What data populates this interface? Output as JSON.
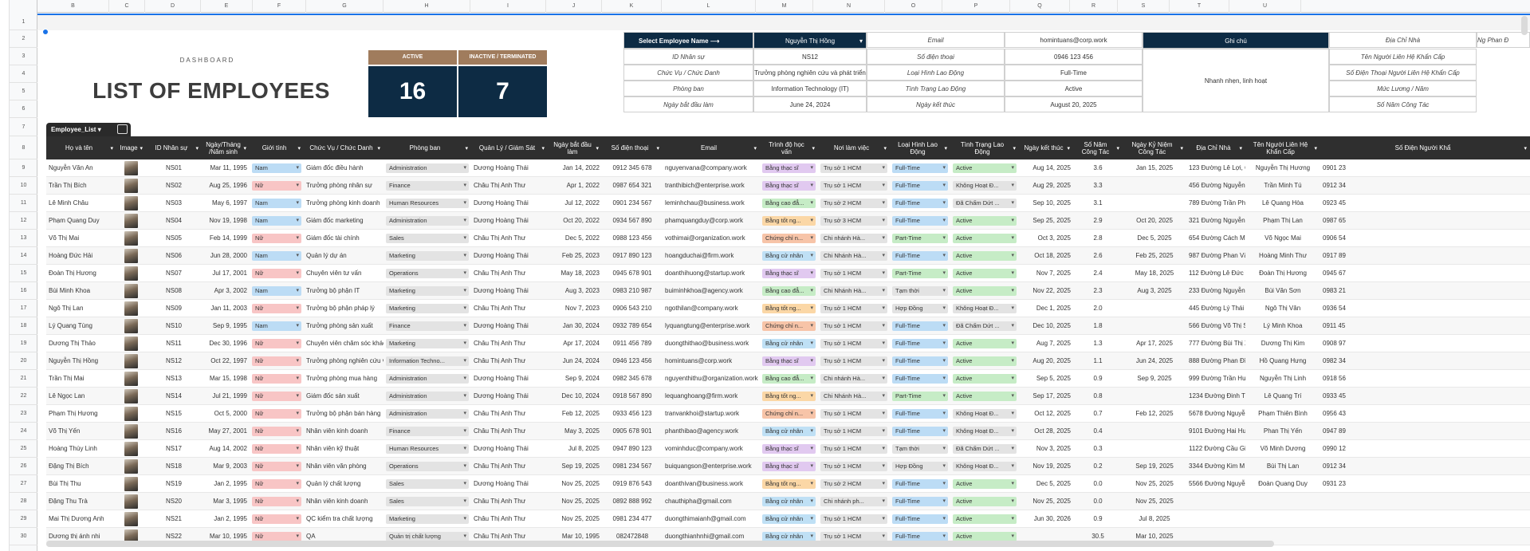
{
  "columns": [
    "B",
    "C",
    "D",
    "E",
    "F",
    "G",
    "H",
    "I",
    "J",
    "K",
    "L",
    "M",
    "N",
    "O",
    "P",
    "Q",
    "R",
    "S",
    "T",
    "U"
  ],
  "row_numbers": [
    "1",
    "2",
    "3",
    "4",
    "5",
    "6",
    "7",
    "8",
    "9",
    "10",
    "11",
    "12",
    "13",
    "14",
    "15",
    "16",
    "17",
    "18",
    "19",
    "20",
    "21",
    "22",
    "23",
    "24",
    "25",
    "26",
    "27",
    "28",
    "29",
    "30"
  ],
  "dashboard": {
    "label": "DASHBOARD",
    "title": "LIST OF EMPLOYEES",
    "active_label": "ACTIVE",
    "inactive_label": "INACTIVE / TERMINATED",
    "active_count": "16",
    "inactive_count": "7"
  },
  "info": {
    "select_label": "Select Employee Name",
    "selected_name": "Nguyễn Thị Hồng",
    "id_label": "ID Nhân sự",
    "id_value": "NS12",
    "position_label": "Chức Vụ / Chức Danh",
    "position_value": "Trưởng phòng nghiên cứu và phát triển",
    "dept_label": "Phòng ban",
    "dept_value": "Information Technology (IT)",
    "start_label": "Ngày bắt đầu làm",
    "start_value": "June 24, 2024",
    "email_label": "Email",
    "email_value": "homintuans@corp.work",
    "phone_label": "Số điện thoại",
    "phone_value": "0946 123 456",
    "contract_label": "Loại Hình Lao Động",
    "contract_value": "Full-Time",
    "status_label": "Tình Trạng Lao Động",
    "status_value": "Active",
    "end_label": "Ngày kết thúc",
    "end_value": "August 20, 2025",
    "note_label": "Ghi chú",
    "note_value": "Nhanh nhẹn, linh hoạt",
    "address_label": "Địa Chỉ Nhà",
    "contact_name_label": "Tên Người Liên Hệ Khẩn Cấp",
    "contact_phone_label": "Số Điện Thoại Người Liên Hệ Khẩn Cấp",
    "salary_label": "Mức Lương / Năm",
    "years_label": "Số Năm Công Tác",
    "extra_label": "Ng Phan Đ"
  },
  "table_tab": "Employee_List",
  "headers": {
    "name": "Họ và tên",
    "image": "Image",
    "id": "ID Nhân sự",
    "dob": "Ngày/Tháng /Năm sinh",
    "gender": "Giới tính",
    "position": "Chức Vụ / Chức Danh",
    "dept": "Phòng ban",
    "manager": "Quản Lý / Giám Sát",
    "start": "Ngày bắt đầu làm",
    "phone": "Số điện thoại",
    "email": "Email",
    "edu": "Trình độ học vấn",
    "office": "Nơi làm việc",
    "contract": "Loại Hình Lao Động",
    "status": "Tình Trạng Lao Động",
    "end": "Ngày kết thúc",
    "years": "Số Năm Công Tác",
    "anniv": "Ngày Kỷ Niệm Công Tác",
    "address": "Địa Chỉ Nhà",
    "contact": "Tên Người Liên Hệ Khẩn Cấp",
    "contact_phone": "Số Điện Người Khẩ"
  },
  "rows": [
    {
      "name": "Nguyễn Văn An",
      "id": "NS01",
      "dob": "Mar 11, 1995",
      "gender": "Nam",
      "position": "Giám đốc điều hành",
      "dept": "Administration",
      "manager": "Dương Hoàng Thái",
      "start": "Jan 14, 2022",
      "phone": "0912 345 678",
      "email": "nguyenvana@company.work",
      "edu": "Bằng thạc sĩ",
      "office": "Trụ sở 1 HCM",
      "contract": "Full-Time",
      "status": "Active",
      "end": "Aug 14, 2025",
      "years": "3.6",
      "anniv": "Jan 15, 2025",
      "address": "123 Đường Lê Lợi, Q",
      "contact": "Nguyễn Thị Hương",
      "cphone": "0901 23"
    },
    {
      "name": "Trần Thị Bích",
      "id": "NS02",
      "dob": "Aug 25, 1996",
      "gender": "Nữ",
      "position": "Trưởng phòng nhân sự",
      "dept": "Finance",
      "manager": "Châu Thị Anh Thư",
      "start": "Apr 1, 2022",
      "phone": "0987 654 321",
      "email": "tranthibich@enterprise.work",
      "edu": "Bằng thạc sĩ",
      "office": "Trụ sở 1 HCM",
      "contract": "Full-Time",
      "status": "Không Hoạt Đ...",
      "end": "Aug 29, 2025",
      "years": "3.3",
      "anniv": "",
      "address": "456 Đường Nguyễn",
      "contact": "Trần Minh Tú",
      "cphone": "0912 34"
    },
    {
      "name": "Lê Minh Châu",
      "id": "NS03",
      "dob": "May 6, 1997",
      "gender": "Nam",
      "position": "Trưởng phòng kinh doanh",
      "dept": "Human Resources",
      "manager": "Dương Hoàng Thái",
      "start": "Jul 12, 2022",
      "phone": "0901 234 567",
      "email": "leminhchau@business.work",
      "edu": "Bằng cao đẳ...",
      "office": "Trụ sở 2 HCM",
      "contract": "Full-Time",
      "status": "Đã Chấm Dứt ...",
      "end": "Sep 10, 2025",
      "years": "3.1",
      "anniv": "",
      "address": "789 Đường Trần Ph",
      "contact": "Lê Quang Hòa",
      "cphone": "0923 45"
    },
    {
      "name": "Phạm Quang Duy",
      "id": "NS04",
      "dob": "Nov 19, 1998",
      "gender": "Nam",
      "position": "Giám đốc marketing",
      "dept": "Administration",
      "manager": "Dương Hoàng Thái",
      "start": "Oct 20, 2022",
      "phone": "0934 567 890",
      "email": "phamquangduy@corp.work",
      "edu": "Bằng tốt ng...",
      "office": "Trụ sở 3 HCM",
      "contract": "Full-Time",
      "status": "Active",
      "end": "Sep 25, 2025",
      "years": "2.9",
      "anniv": "Oct 20, 2025",
      "address": "321 Đường Nguyễn",
      "contact": "Phạm Thị Lan",
      "cphone": "0987 65"
    },
    {
      "name": "Võ Thị Mai",
      "id": "NS05",
      "dob": "Feb 14, 1999",
      "gender": "Nữ",
      "position": "Giám đốc tài chính",
      "dept": "Sales",
      "manager": "Châu Thị Anh Thư",
      "start": "Dec 5, 2022",
      "phone": "0988 123 456",
      "email": "vothimai@organization.work",
      "edu": "Chứng chỉ n...",
      "office": "Chi nhánh Hà...",
      "contract": "Part-Time",
      "status": "Active",
      "end": "Oct 3, 2025",
      "years": "2.8",
      "anniv": "Dec 5, 2025",
      "address": "654 Đường Cách M",
      "contact": "Võ Ngọc Mai",
      "cphone": "0906 54"
    },
    {
      "name": "Hoàng Đức Hải",
      "id": "NS06",
      "dob": "Jun 28, 2000",
      "gender": "Nam",
      "position": "Quản lý dự án",
      "dept": "Marketing",
      "manager": "Dương Hoàng Thái",
      "start": "Feb 25, 2023",
      "phone": "0917 890 123",
      "email": "hoangduchai@firm.work",
      "edu": "Bằng cử nhân",
      "office": "Chi Nhánh Hà...",
      "contract": "Full-Time",
      "status": "Active",
      "end": "Oct 18, 2025",
      "years": "2.6",
      "anniv": "Feb 25, 2025",
      "address": "987 Đường Phan Vă",
      "contact": "Hoàng Minh Thư",
      "cphone": "0917 89"
    },
    {
      "name": "Đoàn Thị Hương",
      "id": "NS07",
      "dob": "Jul 17, 2001",
      "gender": "Nữ",
      "position": "Chuyên viên tư vấn",
      "dept": "Operations",
      "manager": "Châu Thị Anh Thư",
      "start": "May 18, 2023",
      "phone": "0945 678 901",
      "email": "doanthihuong@startup.work",
      "edu": "Bằng thạc sĩ",
      "office": "Trụ sở 1 HCM",
      "contract": "Part-Time",
      "status": "Active",
      "end": "Nov 7, 2025",
      "years": "2.4",
      "anniv": "May 18, 2025",
      "address": "112 Đường Lê Đức T",
      "contact": "Đoàn Thị Hương",
      "cphone": "0945 67"
    },
    {
      "name": "Bùi Minh Khoa",
      "id": "NS08",
      "dob": "Apr 3, 2002",
      "gender": "Nam",
      "position": "Trưởng bộ phận IT",
      "dept": "Marketing",
      "manager": "Dương Hoàng Thái",
      "start": "Aug 3, 2023",
      "phone": "0983 210 987",
      "email": "buiminhkhoa@agency.work",
      "edu": "Bằng cao đẳ...",
      "office": "Chi Nhánh Hà...",
      "contract": "Tạm thời",
      "status": "Active",
      "end": "Nov 22, 2025",
      "years": "2.3",
      "anniv": "Aug 3, 2025",
      "address": "233 Đường Nguyễn",
      "contact": "Bùi Văn Sơn",
      "cphone": "0983 21"
    },
    {
      "name": "Ngô Thị Lan",
      "id": "NS09",
      "dob": "Jan 11, 2003",
      "gender": "Nữ",
      "position": "Trưởng bộ phận pháp lý",
      "dept": "Marketing",
      "manager": "Châu Thị Anh Thư",
      "start": "Nov 7, 2023",
      "phone": "0906 543 210",
      "email": "ngothilan@company.work",
      "edu": "Bằng tốt ng...",
      "office": "Trụ sở 1 HCM",
      "contract": "Hợp Đồng",
      "status": "Không Hoạt Đ...",
      "end": "Dec 1, 2025",
      "years": "2.0",
      "anniv": "",
      "address": "445 Đường Lý Thái",
      "contact": "Ngô Thị Vân",
      "cphone": "0936 54"
    },
    {
      "name": "Lý Quang Tùng",
      "id": "NS10",
      "dob": "Sep 9, 1995",
      "gender": "Nam",
      "position": "Trưởng phòng sản xuất",
      "dept": "Finance",
      "manager": "Dương Hoàng Thái",
      "start": "Jan 30, 2024",
      "phone": "0932 789 654",
      "email": "lyquangtung@enterprise.work",
      "edu": "Chứng chỉ n...",
      "office": "Trụ sở 1 HCM",
      "contract": "Full-Time",
      "status": "Đã Chấm Dứt ...",
      "end": "Dec 10, 2025",
      "years": "1.8",
      "anniv": "",
      "address": "566 Đường Võ Thị S",
      "contact": "Lý Minh Khoa",
      "cphone": "0911 45"
    },
    {
      "name": "Dương Thị Thảo",
      "id": "NS11",
      "dob": "Dec 30, 1996",
      "gender": "Nữ",
      "position": "Chuyên viên chăm sóc khác",
      "dept": "Marketing",
      "manager": "Châu Thị Anh Thư",
      "start": "Apr 17, 2024",
      "phone": "0911 456 789",
      "email": "duongthithao@business.work",
      "edu": "Bằng cử nhân",
      "office": "Trụ sở 1 HCM",
      "contract": "Full-Time",
      "status": "Active",
      "end": "Aug 7, 2025",
      "years": "1.3",
      "anniv": "Apr 17, 2025",
      "address": "777 Đường Bùi Thị X",
      "contact": "Dương Thị Kim",
      "cphone": "0908 97"
    },
    {
      "name": "Nguyễn Thị Hồng",
      "id": "NS12",
      "dob": "Oct 22, 1997",
      "gender": "Nữ",
      "position": "Trưởng phòng nghiên cứu và",
      "dept": "Information Techno...",
      "manager": "Châu Thị Anh Thư",
      "start": "Jun 24, 2024",
      "phone": "0946 123 456",
      "email": "homintuans@corp.work",
      "edu": "Bằng thạc sĩ",
      "office": "Trụ sở 1 HCM",
      "contract": "Full-Time",
      "status": "Active",
      "end": "Aug 20, 2025",
      "years": "1.1",
      "anniv": "Jun 24, 2025",
      "address": "888 Đường Phan Đì",
      "contact": "Hồ Quang Hưng",
      "cphone": "0982 34"
    },
    {
      "name": "Trần Thị Mai",
      "id": "NS13",
      "dob": "Mar 15, 1998",
      "gender": "Nữ",
      "position": "Trưởng phòng mua hàng",
      "dept": "Administration",
      "manager": "Dương Hoàng Thái",
      "start": "Sep 9, 2024",
      "phone": "0982 345 678",
      "email": "nguyenthithu@organization.work",
      "edu": "Bằng cao đẳ...",
      "office": "Chi nhánh Hà...",
      "contract": "Full-Time",
      "status": "Active",
      "end": "Sep 5, 2025",
      "years": "0.9",
      "anniv": "Sep 9, 2025",
      "address": "999 Đường Trần Hư",
      "contact": "Nguyễn Thị Linh",
      "cphone": "0918 56"
    },
    {
      "name": "Lê Ngọc Lan",
      "id": "NS14",
      "dob": "Jul 21, 1999",
      "gender": "Nữ",
      "position": "Giám đốc sản xuất",
      "dept": "Administration",
      "manager": "Dương Hoàng Thái",
      "start": "Dec 10, 2024",
      "phone": "0918 567 890",
      "email": "lequanghoang@firm.work",
      "edu": "Bằng tốt ng...",
      "office": "Chi Nhánh Hà...",
      "contract": "Part-Time",
      "status": "Active",
      "end": "Sep 17, 2025",
      "years": "0.8",
      "anniv": "",
      "address": "1234 Đường Đinh T",
      "contact": "Lê Quang Trí",
      "cphone": "0933 45"
    },
    {
      "name": "Phạm Thị Hương",
      "id": "NS15",
      "dob": "Oct 5, 2000",
      "gender": "Nữ",
      "position": "Trưởng bộ phận bán hàng",
      "dept": "Administration",
      "manager": "Châu Thị Anh Thư",
      "start": "Feb 12, 2025",
      "phone": "0933 456 123",
      "email": "tranvankhoi@startup.work",
      "edu": "Chứng chỉ n...",
      "office": "Trụ sở 1 HCM",
      "contract": "Full-Time",
      "status": "Không Hoạt Đ...",
      "end": "Oct 12, 2025",
      "years": "0.7",
      "anniv": "Feb 12, 2025",
      "address": "5678 Đường Nguyễ",
      "contact": "Phạm Thiên Bình",
      "cphone": "0956 43"
    },
    {
      "name": "Võ Thị Yến",
      "id": "NS16",
      "dob": "May 27, 2001",
      "gender": "Nữ",
      "position": "Nhân viên kinh doanh",
      "dept": "Finance",
      "manager": "Châu Thị Anh Thư",
      "start": "May 3, 2025",
      "phone": "0905 678 901",
      "email": "phanthibao@agency.work",
      "edu": "Bằng cử nhân",
      "office": "Trụ sở 1 HCM",
      "contract": "Full-Time",
      "status": "Không Hoạt Đ...",
      "end": "Oct 28, 2025",
      "years": "0.4",
      "anniv": "",
      "address": "9101 Đường Hai Huy",
      "contact": "Phan Thị Yến",
      "cphone": "0947 89"
    },
    {
      "name": "Hoàng Thùy Linh",
      "id": "NS17",
      "dob": "Aug 14, 2002",
      "gender": "Nữ",
      "position": "Nhân viên kỹ thuật",
      "dept": "Human Resources",
      "manager": "Dương Hoàng Thái",
      "start": "Jul 8, 2025",
      "phone": "0947 890 123",
      "email": "vominhduc@company.work",
      "edu": "Bằng thạc sĩ",
      "office": "Trụ sở 1 HCM",
      "contract": "Tạm thời",
      "status": "Đã Chấm Dứt ...",
      "end": "Nov 3, 2025",
      "years": "0.3",
      "anniv": "",
      "address": "1122 Đường Cầu Gi",
      "contact": "Võ Minh Dương",
      "cphone": "0990 12"
    },
    {
      "name": "Đặng Thị Bích",
      "id": "NS18",
      "dob": "Mar 9, 2003",
      "gender": "Nữ",
      "position": "Nhân viên văn phòng",
      "dept": "Operations",
      "manager": "Châu Thị Anh Thư",
      "start": "Sep 19, 2025",
      "phone": "0981 234 567",
      "email": "buiquangson@enterprise.work",
      "edu": "Bằng thạc sĩ",
      "office": "Trụ sở 1 HCM",
      "contract": "Hợp Đồng",
      "status": "Không Hoạt Đ...",
      "end": "Nov 19, 2025",
      "years": "0.2",
      "anniv": "Sep 19, 2025",
      "address": "3344 Đường Kim M",
      "contact": "Bùi Thị Lan",
      "cphone": "0912 34"
    },
    {
      "name": "Bùi Thị Thu",
      "id": "NS19",
      "dob": "Jan 2, 1995",
      "gender": "Nữ",
      "position": "Quản lý chất lượng",
      "dept": "Sales",
      "manager": "Dương Hoàng Thái",
      "start": "Nov 25, 2025",
      "phone": "0919 876 543",
      "email": "doanthivan@business.work",
      "edu": "Bằng tốt ng...",
      "office": "Trụ sở 2 HCM",
      "contract": "Full-Time",
      "status": "Active",
      "end": "Dec 5, 2025",
      "years": "0.0",
      "anniv": "Nov 25, 2025",
      "address": "5566 Đường Nguyễ",
      "contact": "Đoàn Quang Duy",
      "cphone": "0931 23"
    },
    {
      "name": "Đặng Thu Trà",
      "id": "NS20",
      "dob": "Mar 3, 1995",
      "gender": "Nữ",
      "position": "Nhân viên kinh doanh",
      "dept": "Sales",
      "manager": "Châu Thị Anh Thư",
      "start": "Nov 25, 2025",
      "phone": "0892 888 992",
      "email": "chauthipha@gmail.com",
      "edu": "Bằng cử nhân",
      "office": "Chi nhánh ph...",
      "contract": "Full-Time",
      "status": "Active",
      "end": "Nov 25, 2025",
      "years": "0.0",
      "anniv": "Nov 25, 2025",
      "address": "",
      "contact": "",
      "cphone": ""
    },
    {
      "name": "Mai Thị Dương Anh",
      "id": "NS21",
      "dob": "Jan 2, 1995",
      "gender": "Nữ",
      "position": "QC kiểm tra chất lượng",
      "dept": "Marketing",
      "manager": "Châu Thị Anh Thư",
      "start": "Nov 25, 2025",
      "phone": "0981 234 477",
      "email": "duongthimaianh@gmail.com",
      "edu": "Bằng cử nhân",
      "office": "Trụ sở 1 HCM",
      "contract": "Full-Time",
      "status": "Active",
      "end": "Jun 30, 2026",
      "years": "0.9",
      "anniv": "Jul 8, 2025",
      "address": "",
      "contact": "",
      "cphone": ""
    },
    {
      "name": "Dương thị ánh nhi",
      "id": "NS22",
      "dob": "Mar 10, 1995",
      "gender": "Nữ",
      "position": "QA",
      "dept": "Quản trị chất lượng",
      "manager": "Châu Thị Anh Thư",
      "start": "Mar 10, 1995",
      "phone": "082472848",
      "email": "duongthianhnhi@gmail.com",
      "edu": "Bằng cử nhân",
      "office": "Trụ sở 1 HCM",
      "contract": "Full-Time",
      "status": "Active",
      "end": "",
      "years": "30.5",
      "anniv": "Mar 10, 2025",
      "address": "",
      "contact": "",
      "cphone": ""
    }
  ]
}
